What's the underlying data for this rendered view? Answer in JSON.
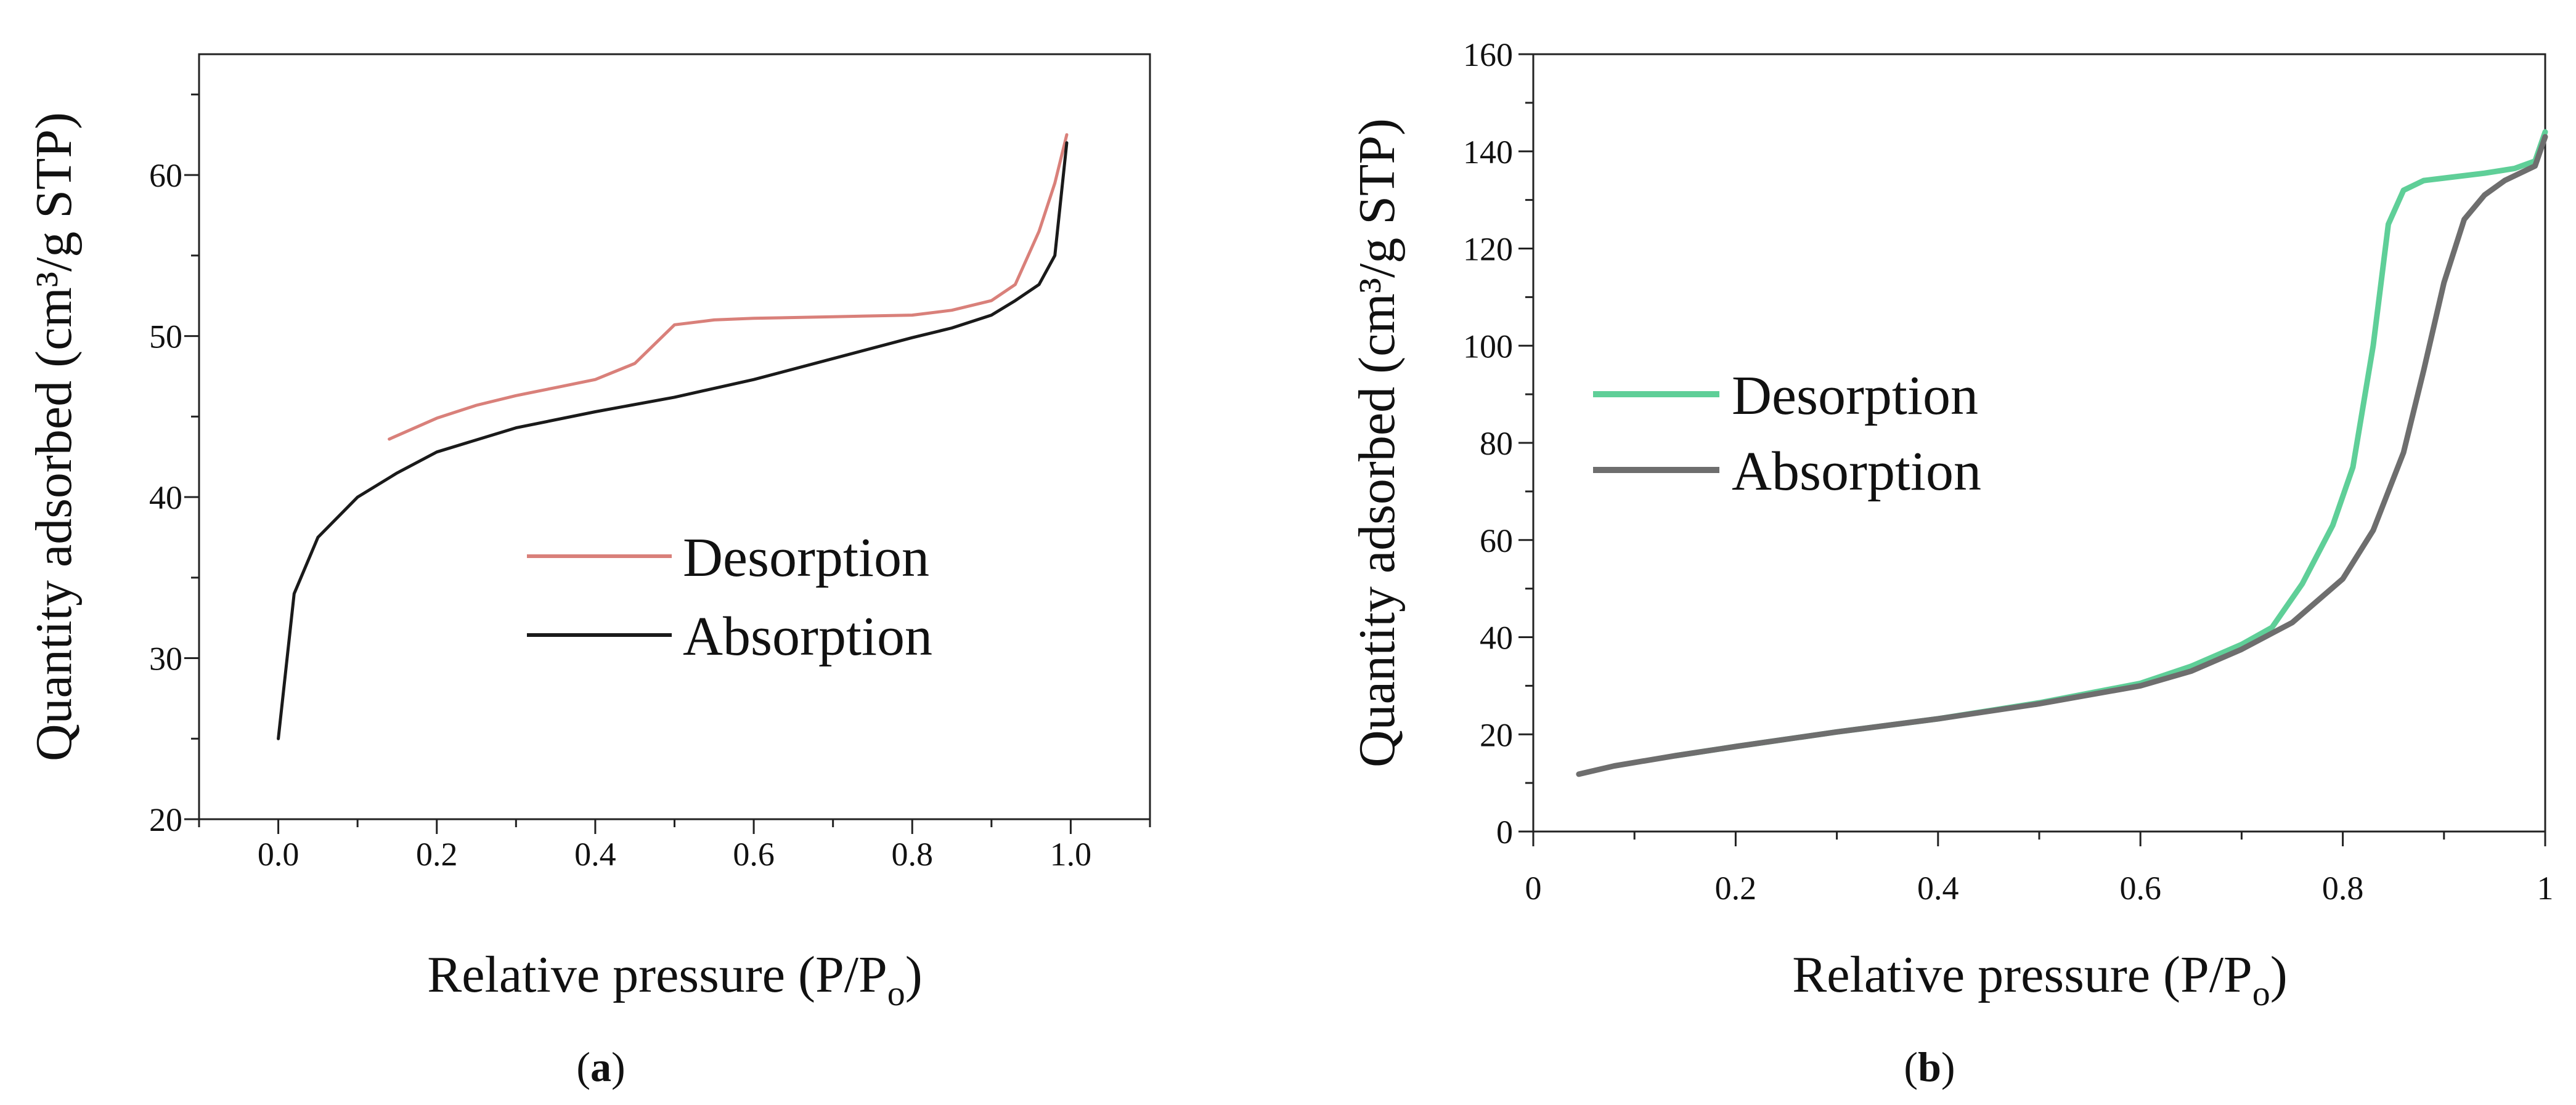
{
  "colors": {
    "a_desorption": "#d9807a",
    "a_absorption": "#1a1a1a",
    "b_desorption": "#5fcf98",
    "b_absorption": "#6e6e6e"
  },
  "chart_data": [
    {
      "panel": "a",
      "type": "line",
      "caption_letter": "a",
      "caption_open": "(",
      "caption_close": ")",
      "title": "",
      "xlabel": "Relative pressure (P/P",
      "xlabel_sub": "o",
      "xlabel_tail": ")",
      "ylabel": "Quantity adsorbed (cm³/g STP)",
      "xlim": [
        -0.1,
        1.1
      ],
      "ylim": [
        20,
        67.5
      ],
      "xticks": [
        0.0,
        0.2,
        0.4,
        0.6,
        0.8,
        1.0
      ],
      "xtick_labels": [
        "0.0",
        "0.2",
        "0.4",
        "0.6",
        "0.8",
        "1.0"
      ],
      "yticks": [
        20,
        30,
        40,
        50,
        60
      ],
      "ytick_labels": [
        "20",
        "30",
        "40",
        "50",
        "60"
      ],
      "legend_position": "center-right",
      "series": [
        {
          "name": "Desorption",
          "x": [
            0.14,
            0.2,
            0.25,
            0.3,
            0.35,
            0.4,
            0.45,
            0.5,
            0.55,
            0.6,
            0.7,
            0.8,
            0.85,
            0.9,
            0.93,
            0.96,
            0.98,
            0.995
          ],
          "y": [
            43.6,
            44.9,
            45.7,
            46.3,
            46.8,
            47.3,
            48.3,
            50.7,
            51.0,
            51.1,
            51.2,
            51.3,
            51.6,
            52.2,
            53.2,
            56.5,
            59.5,
            62.5
          ]
        },
        {
          "name": "Absorption",
          "x": [
            0.0,
            0.02,
            0.05,
            0.1,
            0.15,
            0.2,
            0.3,
            0.4,
            0.5,
            0.6,
            0.7,
            0.8,
            0.85,
            0.9,
            0.93,
            0.96,
            0.98,
            0.995
          ],
          "y": [
            25.0,
            34.0,
            37.5,
            40.0,
            41.5,
            42.8,
            44.3,
            45.3,
            46.2,
            47.3,
            48.6,
            49.9,
            50.5,
            51.3,
            52.2,
            53.2,
            55.0,
            62.0
          ]
        }
      ]
    },
    {
      "panel": "b",
      "type": "line",
      "caption_letter": "b",
      "caption_open": "(",
      "caption_close": ")",
      "title": "",
      "xlabel": "Relative pressure (P/P",
      "xlabel_sub": "o",
      "xlabel_tail": ")",
      "ylabel": "Quantity adsorbed (cm³/g STP)",
      "xlim": [
        0,
        1
      ],
      "ylim": [
        0,
        160
      ],
      "xticks": [
        0,
        0.2,
        0.4,
        0.6,
        0.8,
        1
      ],
      "xtick_labels": [
        "0",
        "0.2",
        "0.4",
        "0.6",
        "0.8",
        "1"
      ],
      "yticks": [
        0,
        20,
        40,
        60,
        80,
        100,
        120,
        140,
        160
      ],
      "ytick_labels": [
        "0",
        "20",
        "40",
        "60",
        "80",
        "100",
        "120",
        "140",
        "160"
      ],
      "legend_position": "center-left",
      "series": [
        {
          "name": "Desorption",
          "x": [
            0.14,
            0.2,
            0.3,
            0.4,
            0.5,
            0.6,
            0.65,
            0.7,
            0.73,
            0.76,
            0.79,
            0.81,
            0.83,
            0.845,
            0.86,
            0.88,
            0.9,
            0.94,
            0.97,
            0.99,
            1.0
          ],
          "y": [
            15.6,
            17.5,
            20.5,
            23.2,
            26.5,
            30.5,
            34.0,
            38.5,
            42.0,
            51.0,
            63.0,
            75.0,
            100.0,
            125.0,
            132.0,
            134.0,
            134.5,
            135.5,
            136.5,
            138.0,
            144.0
          ]
        },
        {
          "name": "Absorption",
          "x": [
            0.045,
            0.08,
            0.14,
            0.2,
            0.3,
            0.4,
            0.5,
            0.6,
            0.65,
            0.7,
            0.75,
            0.8,
            0.83,
            0.86,
            0.88,
            0.9,
            0.92,
            0.94,
            0.96,
            0.98,
            0.99,
            1.0
          ],
          "y": [
            11.8,
            13.5,
            15.6,
            17.5,
            20.5,
            23.2,
            26.3,
            30.0,
            33.0,
            37.5,
            43.0,
            52.0,
            62.0,
            78.0,
            95.0,
            113.0,
            126.0,
            131.0,
            134.0,
            136.0,
            137.0,
            143.0
          ]
        }
      ]
    }
  ]
}
